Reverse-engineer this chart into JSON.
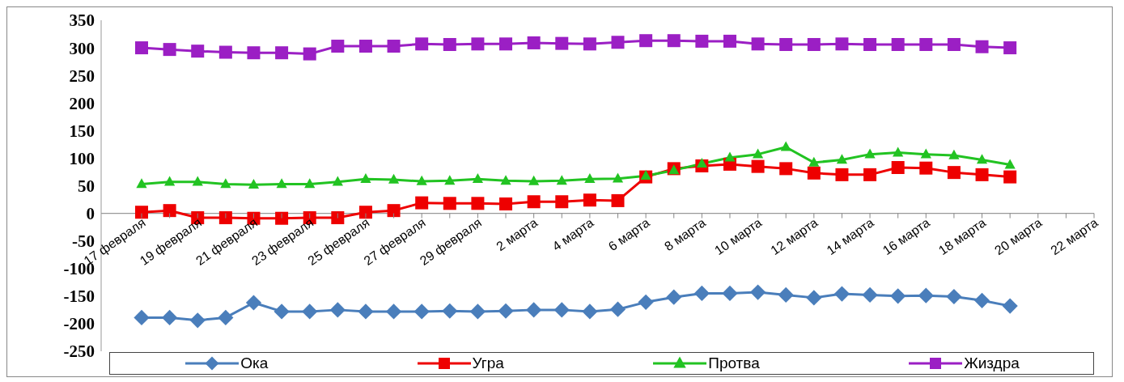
{
  "chart_data": {
    "type": "line",
    "categories": [
      "17 февраля",
      null,
      "19 февраля",
      null,
      "21 февраля",
      null,
      "23 февраля",
      null,
      "25 февраля",
      null,
      "27 февраля",
      null,
      "29 февраля",
      null,
      "2 марта",
      null,
      "4 марта",
      null,
      "6 марта",
      null,
      "8 марта",
      null,
      "10 марта",
      null,
      "12 марта",
      null,
      "14 марта",
      null,
      "16 марта",
      null,
      "18 марта",
      null,
      "20 марта",
      null,
      "22 марта"
    ],
    "series": [
      {
        "name": "Ока",
        "color": "#4a7ebb",
        "marker": "diamond",
        "values": [
          -189,
          -189,
          -194,
          -189,
          -162,
          -178,
          -178,
          -175,
          -178,
          -178,
          -178,
          -177,
          -178,
          -177,
          -175,
          -175,
          -178,
          -174,
          -161,
          -152,
          -145,
          -145,
          -143,
          -148,
          -153,
          -146,
          -148,
          -150,
          -149,
          -151,
          -158,
          -168,
          null,
          null,
          null
        ]
      },
      {
        "name": "Угра",
        "color": "#ee0000",
        "marker": "square",
        "values": [
          2,
          5,
          -8,
          -8,
          -9,
          -9,
          -8,
          -8,
          2,
          5,
          19,
          18,
          18,
          17,
          21,
          21,
          24,
          23,
          66,
          81,
          86,
          89,
          85,
          81,
          73,
          70,
          70,
          83,
          82,
          74,
          70,
          66,
          null,
          null,
          null
        ]
      },
      {
        "name": "Протва",
        "color": "#22c322",
        "marker": "triangle",
        "values": [
          53,
          57,
          57,
          53,
          52,
          53,
          53,
          57,
          62,
          61,
          58,
          59,
          62,
          59,
          58,
          59,
          62,
          63,
          68,
          78,
          90,
          101,
          107,
          120,
          92,
          97,
          107,
          110,
          107,
          105,
          97,
          88,
          null,
          null,
          null
        ]
      },
      {
        "name": "Жиздра",
        "color": "#9b1fc4",
        "marker": "square",
        "values": [
          300,
          297,
          294,
          292,
          291,
          291,
          289,
          303,
          303,
          303,
          307,
          306,
          307,
          307,
          309,
          308,
          307,
          310,
          313,
          313,
          312,
          312,
          307,
          306,
          306,
          307,
          306,
          306,
          306,
          306,
          302,
          300,
          null,
          null,
          null
        ]
      }
    ],
    "ylim": [
      -250,
      350
    ],
    "yticks": [
      -250,
      -200,
      -150,
      -100,
      -50,
      0,
      50,
      100,
      150,
      200,
      250,
      300,
      350
    ],
    "grid": false,
    "legend": "bottom",
    "line_style": "solid"
  }
}
